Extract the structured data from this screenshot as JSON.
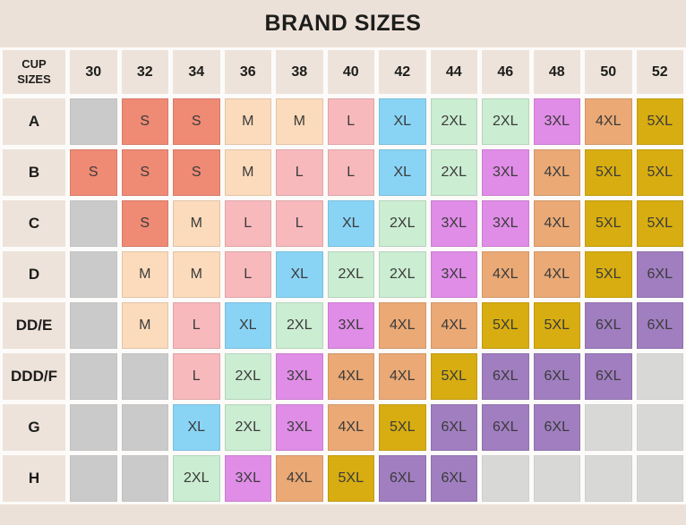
{
  "chart_data": {
    "type": "table",
    "title": "BRAND SIZES",
    "corner_header": "CUP SIZES",
    "columns": [
      "30",
      "32",
      "34",
      "36",
      "38",
      "40",
      "42",
      "44",
      "46",
      "48",
      "50",
      "52"
    ],
    "rows": [
      {
        "cup": "A",
        "cells": [
          "",
          "S",
          "S",
          "M",
          "M",
          "L",
          "XL",
          "2XL",
          "2XL",
          "3XL",
          "4XL",
          "5XL"
        ]
      },
      {
        "cup": "B",
        "cells": [
          "S",
          "S",
          "S",
          "M",
          "L",
          "L",
          "XL",
          "2XL",
          "3XL",
          "4XL",
          "5XL",
          "5XL"
        ]
      },
      {
        "cup": "C",
        "cells": [
          "",
          "S",
          "M",
          "L",
          "L",
          "XL",
          "2XL",
          "3XL",
          "3XL",
          "4XL",
          "5XL",
          "5XL"
        ]
      },
      {
        "cup": "D",
        "cells": [
          "",
          "M",
          "M",
          "L",
          "XL",
          "2XL",
          "2XL",
          "3XL",
          "4XL",
          "4XL",
          "5XL",
          "6XL"
        ]
      },
      {
        "cup": "DD/E",
        "cells": [
          "",
          "M",
          "L",
          "XL",
          "2XL",
          "3XL",
          "4XL",
          "4XL",
          "5XL",
          "5XL",
          "6XL",
          "6XL"
        ]
      },
      {
        "cup": "DDD/F",
        "cells": [
          "",
          "",
          "L",
          "2XL",
          "3XL",
          "4XL",
          "4XL",
          "5XL",
          "6XL",
          "6XL",
          "6XL",
          ""
        ]
      },
      {
        "cup": "G",
        "cells": [
          "",
          "",
          "XL",
          "2XL",
          "3XL",
          "4XL",
          "5XL",
          "6XL",
          "6XL",
          "6XL",
          "",
          ""
        ]
      },
      {
        "cup": "H",
        "cells": [
          "",
          "",
          "2XL",
          "3XL",
          "4XL",
          "5XL",
          "6XL",
          "6XL",
          "",
          "",
          "",
          ""
        ]
      }
    ],
    "size_colors": {
      "S": "#ef8a74",
      "M": "#fbdbbb",
      "L": "#f8b9bc",
      "XL": "#89d4f5",
      "2XL": "#cbedd2",
      "3XL": "#e08de7",
      "4XL": "#eaa975",
      "5XL": "#d7ad11",
      "6XL": "#a07ec0"
    },
    "empty_cell_colors": {
      "leading": "#cacaca",
      "trailing": "#d8d8d6"
    }
  },
  "colors": {
    "page_background": "#ece1d8",
    "header_cell_background": "#ede3da",
    "grid_line": "#fcfbf9",
    "title_text": "#1d1d1b",
    "cell_text": "#3b3b3b"
  }
}
